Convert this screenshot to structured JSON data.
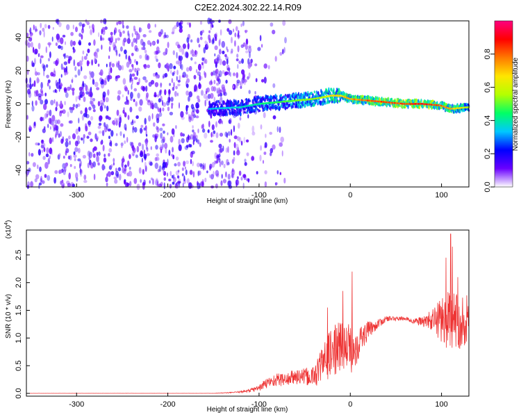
{
  "title": "C2E2.2024.302.22.14.R09",
  "chart_data": [
    {
      "type": "heatmap",
      "title": "C2E2.2024.302.22.14.R09",
      "xlabel": "Height of straight line (km)",
      "ylabel": "Frequency (Hz)",
      "xlim": [
        -355,
        130
      ],
      "ylim": [
        -50,
        50
      ],
      "x_ticks": [
        -300,
        -200,
        -100,
        0,
        100
      ],
      "y_ticks": [
        -40,
        -20,
        0,
        20,
        40
      ],
      "colorbar": {
        "label": "Normalized spectral amplitude",
        "range": [
          0.0,
          1.0
        ],
        "ticks": [
          0.0,
          0.2,
          0.4,
          0.6,
          0.8
        ],
        "tick_labels": [
          "0.0",
          "0.2",
          "0.4",
          "0.6",
          "0.8"
        ],
        "colormap": [
          "#ffffff",
          "#6a00ff",
          "#0000ff",
          "#00c8ff",
          "#00ff66",
          "#b4ff00",
          "#ffe600",
          "#ff7a00",
          "#ff0000",
          "#ff0080"
        ]
      },
      "noise_region_x": [
        -355,
        -115
      ],
      "tone": {
        "x": [
          -155,
          -120,
          -100,
          -80,
          -60,
          -40,
          -30,
          -20,
          -10,
          0,
          20,
          40,
          60,
          80,
          100,
          110,
          130
        ],
        "freq_hz": [
          -3,
          -2,
          0,
          1,
          2,
          3,
          4,
          5,
          5,
          3,
          2,
          1,
          0,
          0,
          -1,
          -3,
          -2
        ],
        "amplitude": [
          0.35,
          0.4,
          0.45,
          0.5,
          0.55,
          0.6,
          0.6,
          0.7,
          0.75,
          0.8,
          0.85,
          0.9,
          0.9,
          0.95,
          0.85,
          0.8,
          0.6
        ]
      }
    },
    {
      "type": "line",
      "xlabel": "Height of straight line (km)",
      "ylabel": "SNR (10 * v/v)",
      "y_multiplier": "(x10",
      "y_multiplier_exp": "4",
      "y_multiplier_close": ")",
      "xlim": [
        -355,
        130
      ],
      "ylim": [
        -0.05,
        2.95
      ],
      "x_ticks": [
        -300,
        -200,
        -100,
        0,
        100
      ],
      "y_ticks": [
        0.0,
        0.5,
        1.0,
        1.5,
        2.0,
        2.5
      ],
      "y_tick_labels": [
        "0.0",
        "0.5",
        "1.0",
        "1.5",
        "2.0",
        "2.5"
      ],
      "line_color": "#ee3333",
      "envelope": {
        "x": [
          -355,
          -150,
          -125,
          -110,
          -100,
          -90,
          -80,
          -70,
          -60,
          -50,
          -40,
          -30,
          -20,
          -10,
          0,
          10,
          20,
          30,
          40,
          50,
          60,
          70,
          80,
          90,
          100,
          110,
          120,
          130
        ],
        "y": [
          0.0,
          0.0,
          0.02,
          0.05,
          0.1,
          0.2,
          0.25,
          0.25,
          0.3,
          0.3,
          0.3,
          0.55,
          0.75,
          0.85,
          0.75,
          0.95,
          1.15,
          1.25,
          1.35,
          1.35,
          1.35,
          1.3,
          1.3,
          1.32,
          1.35,
          1.3,
          1.3,
          1.35
        ],
        "noise": [
          0.002,
          0.002,
          0.01,
          0.03,
          0.06,
          0.1,
          0.12,
          0.12,
          0.15,
          0.15,
          0.2,
          0.35,
          0.45,
          0.5,
          0.5,
          0.3,
          0.15,
          0.08,
          0.05,
          0.04,
          0.03,
          0.05,
          0.1,
          0.2,
          0.45,
          0.55,
          0.5,
          0.45
        ]
      },
      "peaks": [
        {
          "x": 2,
          "y": 2.2
        },
        {
          "x": -8,
          "y": 1.85
        },
        {
          "x": 110,
          "y": 2.88
        },
        {
          "x": 112,
          "y": 2.65
        },
        {
          "x": 105,
          "y": 2.45
        },
        {
          "x": 118,
          "y": 2.1
        },
        {
          "x": -25,
          "y": 1.55
        }
      ]
    }
  ]
}
